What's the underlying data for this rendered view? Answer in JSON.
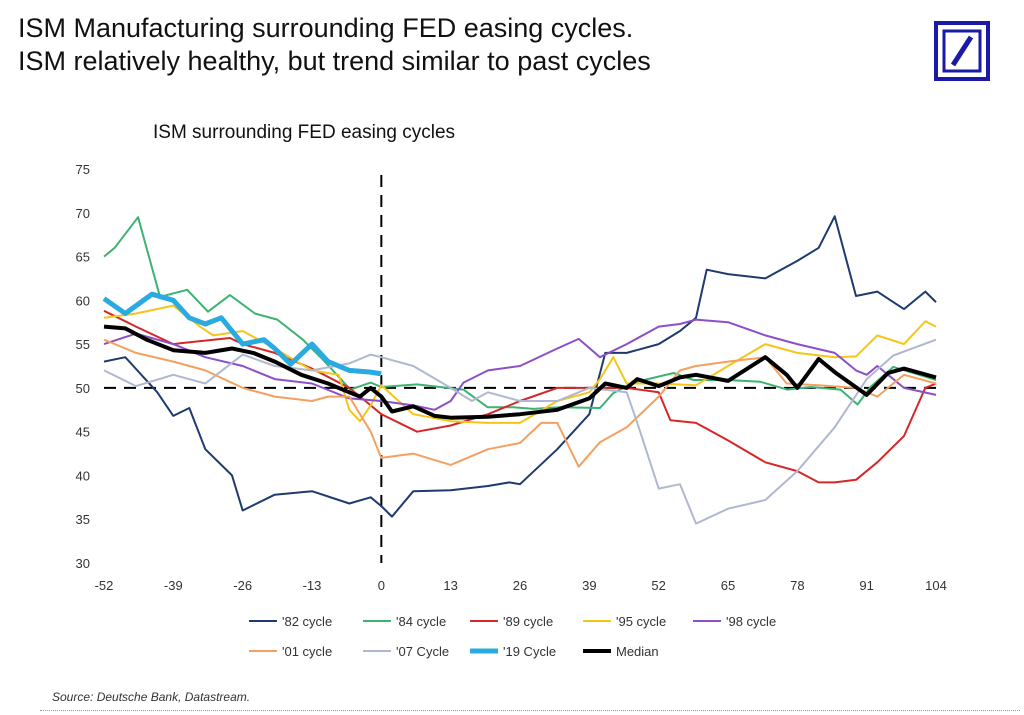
{
  "header": {
    "title_line1": "ISM Manufacturing surrounding FED easing cycles.",
    "title_line2": "ISM relatively healthy, but trend similar to past cycles",
    "logo": "Deutsche Bank logo",
    "logo_color": "#1a1aa6"
  },
  "footer": {
    "source": "Source: Deutsche Bank, Datastream."
  },
  "chart_data": {
    "type": "line",
    "title": "ISM surrounding FED easing cycles",
    "xlabel": "",
    "ylabel": "",
    "xlim": [
      -52,
      104
    ],
    "ylim": [
      30,
      75
    ],
    "xticks": [
      -52,
      -39,
      -26,
      -13,
      0,
      13,
      26,
      39,
      52,
      65,
      78,
      91,
      104
    ],
    "yticks": [
      30,
      35,
      40,
      45,
      50,
      55,
      60,
      65,
      70,
      75
    ],
    "grid": false,
    "legend": "bottom",
    "reference_lines": {
      "x": 0,
      "y": 50
    },
    "series": [
      {
        "name": "'82 cycle",
        "color": "#1f3a6e",
        "width": 2,
        "points": [
          [
            -52,
            53
          ],
          [
            -48,
            53.5
          ],
          [
            -42,
            49.5
          ],
          [
            -39,
            46.8
          ],
          [
            -36,
            47.7
          ],
          [
            -33,
            43
          ],
          [
            -28,
            40
          ],
          [
            -26,
            36
          ],
          [
            -20,
            37.8
          ],
          [
            -13,
            38.2
          ],
          [
            -6,
            36.8
          ],
          [
            -2,
            37.5
          ],
          [
            0,
            36.5
          ],
          [
            2,
            35.3
          ],
          [
            6,
            38.2
          ],
          [
            13,
            38.3
          ],
          [
            20,
            38.8
          ],
          [
            24,
            39.2
          ],
          [
            26,
            39
          ],
          [
            33,
            43
          ],
          [
            39,
            47
          ],
          [
            42,
            54
          ],
          [
            46,
            54
          ],
          [
            52,
            55
          ],
          [
            56,
            56.5
          ],
          [
            59,
            58
          ],
          [
            61,
            63.5
          ],
          [
            65,
            63
          ],
          [
            72,
            62.5
          ],
          [
            78,
            64.5
          ],
          [
            82,
            66
          ],
          [
            85,
            69.6
          ],
          [
            89,
            60.5
          ],
          [
            93,
            61
          ],
          [
            98,
            59
          ],
          [
            102,
            61
          ],
          [
            104,
            59.8
          ]
        ]
      },
      {
        "name": "'84 cycle",
        "color": "#3cb371",
        "width": 2,
        "points": [
          [
            -52,
            65
          ],
          [
            -50,
            66
          ],
          [
            -45.6,
            69.5
          ],
          [
            -41.5,
            60.4
          ],
          [
            -36.4,
            61.2
          ],
          [
            -32.5,
            58.7
          ],
          [
            -28.4,
            60.6
          ],
          [
            -23.7,
            58.5
          ],
          [
            -19.5,
            57.8
          ],
          [
            -14.7,
            55.5
          ],
          [
            -10.9,
            53.2
          ],
          [
            -5.8,
            49.8
          ],
          [
            -2,
            50.6
          ],
          [
            0,
            50.1
          ],
          [
            6.7,
            50.4
          ],
          [
            12.4,
            50
          ],
          [
            15.4,
            49.8
          ],
          [
            19.9,
            47.8
          ],
          [
            24.7,
            47.8
          ],
          [
            28.5,
            47.6
          ],
          [
            33.5,
            47.8
          ],
          [
            41,
            47.7
          ],
          [
            43.5,
            49.4
          ],
          [
            47.2,
            50.6
          ],
          [
            54.8,
            51.7
          ],
          [
            58.5,
            50.9
          ],
          [
            64.9,
            50.9
          ],
          [
            71.1,
            50.7
          ],
          [
            76.1,
            49.8
          ],
          [
            80.5,
            50.1
          ],
          [
            86.1,
            49.8
          ],
          [
            89.3,
            48.1
          ],
          [
            91.7,
            50.1
          ],
          [
            96,
            52.4
          ],
          [
            99.8,
            51.7
          ],
          [
            104,
            50.9
          ]
        ]
      },
      {
        "name": "'89 cycle",
        "color": "#d62728",
        "width": 2,
        "points": [
          [
            -52,
            58.8
          ],
          [
            -46,
            57
          ],
          [
            -39,
            55
          ],
          [
            -37.7,
            55.1
          ],
          [
            -28.4,
            55.7
          ],
          [
            -26,
            55
          ],
          [
            -20,
            54
          ],
          [
            -13,
            52.2
          ],
          [
            -6,
            50
          ],
          [
            -2,
            48
          ],
          [
            0,
            47
          ],
          [
            6.7,
            45
          ],
          [
            13,
            45.7
          ],
          [
            20,
            47
          ],
          [
            26,
            48.5
          ],
          [
            33,
            50
          ],
          [
            39,
            50
          ],
          [
            46,
            50
          ],
          [
            52,
            49.5
          ],
          [
            54.2,
            46.3
          ],
          [
            59,
            46
          ],
          [
            65,
            44
          ],
          [
            72,
            41.5
          ],
          [
            78,
            40.5
          ],
          [
            82,
            39.2
          ],
          [
            85,
            39.2
          ],
          [
            89,
            39.5
          ],
          [
            93,
            41.5
          ],
          [
            98,
            44.5
          ],
          [
            102,
            50
          ],
          [
            104,
            50.5
          ]
        ]
      },
      {
        "name": "'95 cycle",
        "color": "#f5c518",
        "width": 2,
        "points": [
          [
            -52,
            58
          ],
          [
            -46,
            58.5
          ],
          [
            -39,
            59.4
          ],
          [
            -34,
            57
          ],
          [
            -31.5,
            56
          ],
          [
            -26,
            56.5
          ],
          [
            -20,
            54.5
          ],
          [
            -13,
            52
          ],
          [
            -8,
            51.5
          ],
          [
            -6,
            47.5
          ],
          [
            -4,
            46.2
          ],
          [
            -2,
            48
          ],
          [
            0,
            50.3
          ],
          [
            6,
            47
          ],
          [
            13,
            46.2
          ],
          [
            20,
            46
          ],
          [
            26,
            46
          ],
          [
            33,
            48.5
          ],
          [
            39,
            49.5
          ],
          [
            41,
            51
          ],
          [
            43.5,
            53.5
          ],
          [
            46,
            50.5
          ],
          [
            52,
            50.5
          ],
          [
            59,
            50.3
          ],
          [
            65,
            52.5
          ],
          [
            72,
            55
          ],
          [
            78,
            54
          ],
          [
            85,
            53.5
          ],
          [
            89,
            53.6
          ],
          [
            93,
            56
          ],
          [
            98,
            55
          ],
          [
            102,
            57.6
          ],
          [
            104,
            57
          ]
        ]
      },
      {
        "name": "'98 cycle",
        "color": "#8b4fc8",
        "width": 2,
        "points": [
          [
            -52,
            55
          ],
          [
            -46,
            56.2
          ],
          [
            -39,
            55
          ],
          [
            -33,
            53.5
          ],
          [
            -26,
            52.5
          ],
          [
            -20,
            51
          ],
          [
            -13,
            50.5
          ],
          [
            -6,
            48.8
          ],
          [
            0,
            48.5
          ],
          [
            6,
            48
          ],
          [
            10,
            47.5
          ],
          [
            13,
            48.5
          ],
          [
            15.4,
            50.6
          ],
          [
            20,
            52
          ],
          [
            26,
            52.5
          ],
          [
            33,
            54.5
          ],
          [
            37,
            55.6
          ],
          [
            41,
            53.5
          ],
          [
            46,
            55
          ],
          [
            52,
            57
          ],
          [
            56,
            57.3
          ],
          [
            59,
            57.8
          ],
          [
            65,
            57.5
          ],
          [
            72,
            56
          ],
          [
            78,
            55
          ],
          [
            85,
            54
          ],
          [
            89,
            52
          ],
          [
            91,
            51.5
          ],
          [
            93,
            52.5
          ],
          [
            98,
            50
          ],
          [
            104,
            49.2
          ]
        ]
      },
      {
        "name": "'01 cycle",
        "color": "#f4a060",
        "width": 2,
        "points": [
          [
            -52,
            55.5
          ],
          [
            -46,
            54
          ],
          [
            -39,
            53
          ],
          [
            -33,
            52
          ],
          [
            -26,
            50
          ],
          [
            -20,
            49
          ],
          [
            -13,
            48.5
          ],
          [
            -10,
            49
          ],
          [
            -6,
            49
          ],
          [
            -2,
            45
          ],
          [
            0,
            42
          ],
          [
            6,
            42.5
          ],
          [
            13,
            41.2
          ],
          [
            20,
            43
          ],
          [
            26,
            43.7
          ],
          [
            30,
            46
          ],
          [
            33,
            46
          ],
          [
            37,
            41
          ],
          [
            41,
            43.8
          ],
          [
            46,
            45.5
          ],
          [
            52,
            49
          ],
          [
            56,
            52
          ],
          [
            59,
            52.5
          ],
          [
            65,
            53
          ],
          [
            72,
            53.5
          ],
          [
            76,
            50.5
          ],
          [
            82,
            50.3
          ],
          [
            89,
            50
          ],
          [
            93,
            49
          ],
          [
            98,
            51.5
          ],
          [
            104,
            50.5
          ]
        ]
      },
      {
        "name": "'07 Cycle",
        "color": "#b0b8d0",
        "width": 2,
        "points": [
          [
            -52,
            52
          ],
          [
            -46,
            50.2
          ],
          [
            -39,
            51.5
          ],
          [
            -33,
            50.5
          ],
          [
            -26,
            53.8
          ],
          [
            -20,
            52.5
          ],
          [
            -13,
            52
          ],
          [
            -6,
            52.8
          ],
          [
            -2,
            53.8
          ],
          [
            0,
            53.5
          ],
          [
            6,
            52.5
          ],
          [
            13,
            50
          ],
          [
            17,
            48.5
          ],
          [
            20,
            49.5
          ],
          [
            26,
            48.5
          ],
          [
            33,
            48.5
          ],
          [
            39,
            50
          ],
          [
            46,
            49.5
          ],
          [
            48,
            46
          ],
          [
            52,
            38.5
          ],
          [
            56,
            39
          ],
          [
            59,
            34.5
          ],
          [
            65,
            36.2
          ],
          [
            72,
            37.2
          ],
          [
            78,
            40.5
          ],
          [
            85,
            45.5
          ],
          [
            91,
            51
          ],
          [
            96,
            53.7
          ],
          [
            104,
            55.5
          ]
        ]
      },
      {
        "name": "'19 Cycle",
        "color": "#29abe2",
        "width": 5,
        "points": [
          [
            -52,
            60.2
          ],
          [
            -48,
            58.5
          ],
          [
            -43,
            60.7
          ],
          [
            -39,
            60
          ],
          [
            -36,
            58
          ],
          [
            -33,
            57.3
          ],
          [
            -30,
            58
          ],
          [
            -26,
            55
          ],
          [
            -22,
            55.5
          ],
          [
            -20,
            54.5
          ],
          [
            -17,
            52.7
          ],
          [
            -13,
            55
          ],
          [
            -10,
            53
          ],
          [
            -6,
            52
          ],
          [
            -2,
            51.8
          ],
          [
            0,
            51.6
          ]
        ]
      },
      {
        "name": "Median",
        "color": "#000000",
        "width": 4,
        "points": [
          [
            -52,
            57
          ],
          [
            -48,
            56.8
          ],
          [
            -44,
            55.5
          ],
          [
            -39,
            54.3
          ],
          [
            -33,
            54
          ],
          [
            -28,
            54.5
          ],
          [
            -24,
            54
          ],
          [
            -20,
            53
          ],
          [
            -15,
            51.5
          ],
          [
            -10,
            50.5
          ],
          [
            -6,
            49.5
          ],
          [
            -4,
            49
          ],
          [
            -2,
            50
          ],
          [
            0,
            49
          ],
          [
            2,
            47.3
          ],
          [
            6,
            47.9
          ],
          [
            10,
            46.8
          ],
          [
            13,
            46.6
          ],
          [
            20,
            46.7
          ],
          [
            26,
            47
          ],
          [
            33,
            47.5
          ],
          [
            39,
            48.8
          ],
          [
            42,
            50.5
          ],
          [
            46,
            50
          ],
          [
            48,
            51
          ],
          [
            52,
            50.2
          ],
          [
            56,
            51.2
          ],
          [
            59,
            51.5
          ],
          [
            65,
            50.8
          ],
          [
            72,
            53.5
          ],
          [
            76,
            51.5
          ],
          [
            78,
            50
          ],
          [
            82,
            53.3
          ],
          [
            85,
            51.8
          ],
          [
            91,
            49.2
          ],
          [
            95,
            51.7
          ],
          [
            98,
            52.2
          ],
          [
            104,
            51.2
          ]
        ]
      }
    ]
  }
}
